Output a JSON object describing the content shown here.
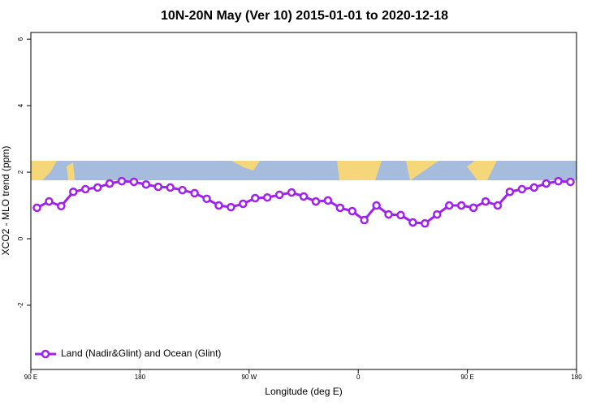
{
  "chart_data": {
    "type": "line",
    "title": "10N-20N May (Ver 10)   2015-01-01 to 2020-12-18",
    "x_label": "Longitude (deg E)",
    "y_label": "XCO2 - MLO trend (ppm)",
    "x": [
      95,
      105,
      115,
      125,
      135,
      145,
      155,
      165,
      175,
      185,
      195,
      205,
      215,
      225,
      235,
      245,
      255,
      265,
      275,
      285,
      295,
      305,
      315,
      325,
      335,
      345,
      355,
      365,
      375,
      385,
      395,
      405,
      415,
      425,
      435,
      445,
      455,
      465,
      475,
      485,
      495,
      505,
      515,
      525,
      535
    ],
    "series": [
      {
        "name": "Land (Nadir&Glint) and Ocean (Glint)",
        "color": "#a020f0",
        "values": [
          0.93,
          1.12,
          0.98,
          1.41,
          1.49,
          1.54,
          1.66,
          1.73,
          1.71,
          1.63,
          1.56,
          1.54,
          1.46,
          1.37,
          1.2,
          1.0,
          0.95,
          1.05,
          1.22,
          1.24,
          1.32,
          1.39,
          1.27,
          1.12,
          1.15,
          0.93,
          0.83,
          0.56,
          1.0,
          0.73,
          0.71,
          0.49,
          0.46,
          0.73,
          1.0,
          1.0,
          0.93,
          1.12,
          1.0,
          1.41,
          1.49,
          1.54,
          1.66,
          1.73,
          1.71
        ]
      }
    ],
    "xlim": [
      90,
      540
    ],
    "xticks": [
      {
        "value": 90,
        "label": "90 E"
      },
      {
        "value": 180,
        "label": "180"
      },
      {
        "value": 270,
        "label": "90 W"
      },
      {
        "value": 360,
        "label": "0"
      },
      {
        "value": 450,
        "label": "90 E"
      },
      {
        "value": 540,
        "label": "180"
      }
    ],
    "ylim": [
      -3.93,
      6.2
    ],
    "yticks": [
      -2,
      0,
      2,
      4,
      6
    ],
    "legend": "bottom-left"
  }
}
